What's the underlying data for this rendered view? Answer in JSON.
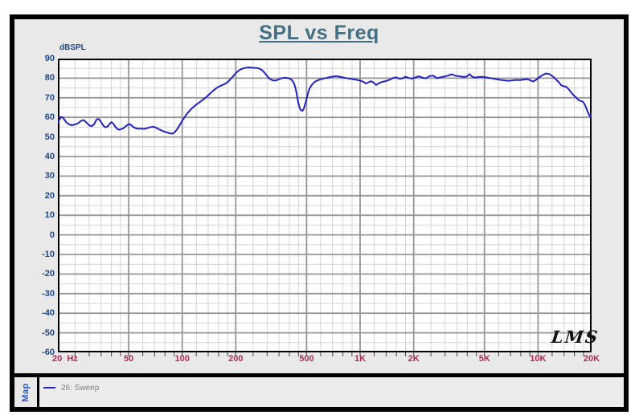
{
  "header": {
    "title": "SPL vs Freq"
  },
  "colors": {
    "title": "#456f82",
    "y_label": "#1f4787",
    "x_label": "#b02858",
    "curve": "#2121c8",
    "map_label": "#2553c9",
    "legend_text": "#7f7f7f",
    "panel_bg": "#e9e9e9",
    "plot_bg": "#ffffff",
    "grid_minor": "#d4d4d4",
    "grid_major": "#979797",
    "frame": "#000000"
  },
  "chart_data": {
    "type": "line",
    "title": "SPL vs Freq",
    "ylabel": "dBSPL",
    "watermark": "LMS",
    "x_axis": {
      "scale": "log",
      "min_hz": 20,
      "max_hz": 20000,
      "ticks": [
        {
          "hz": 20,
          "label": "20  Hz"
        },
        {
          "hz": 50,
          "label": "50"
        },
        {
          "hz": 100,
          "label": "100"
        },
        {
          "hz": 200,
          "label": "200"
        },
        {
          "hz": 500,
          "label": "500"
        },
        {
          "hz": 1000,
          "label": "1K"
        },
        {
          "hz": 2000,
          "label": "2K"
        },
        {
          "hz": 5000,
          "label": "5K"
        },
        {
          "hz": 10000,
          "label": "10K"
        },
        {
          "hz": 20000,
          "label": "20K"
        }
      ]
    },
    "y_axis": {
      "min_db": -60,
      "max_db": 90,
      "major_step": 10,
      "minor_step": 5,
      "unit": "dBSPL"
    },
    "grid": {
      "x_major_hz": [
        50,
        100,
        200,
        500,
        1000,
        2000,
        5000,
        10000
      ],
      "x_minor_hz": [
        25,
        30,
        35,
        40,
        45,
        60,
        70,
        80,
        90,
        120,
        140,
        160,
        180,
        250,
        300,
        350,
        400,
        450,
        600,
        700,
        800,
        900,
        1200,
        1400,
        1600,
        1800,
        2500,
        3000,
        3500,
        4000,
        4500,
        6000,
        7000,
        8000,
        9000,
        12000,
        14000,
        16000,
        18000
      ]
    },
    "series": [
      {
        "name": "26: Sweep",
        "color": "#2121c8",
        "points_hz_db": [
          [
            20,
            57.3
          ],
          [
            20.4,
            58.8
          ],
          [
            20.8,
            60.2
          ],
          [
            21.3,
            60.0
          ],
          [
            21.8,
            58.7
          ],
          [
            22.4,
            57.3
          ],
          [
            23.2,
            56.3
          ],
          [
            24,
            56.0
          ],
          [
            25,
            56.4
          ],
          [
            26,
            57.0
          ],
          [
            27,
            58.2
          ],
          [
            28,
            58.6
          ],
          [
            29,
            57.3
          ],
          [
            30,
            55.9
          ],
          [
            31,
            55.5
          ],
          [
            32,
            56.5
          ],
          [
            33,
            58.9
          ],
          [
            34,
            59.2
          ],
          [
            35,
            57.6
          ],
          [
            36,
            55.8
          ],
          [
            37,
            54.9
          ],
          [
            38,
            55.3
          ],
          [
            39,
            56.5
          ],
          [
            40,
            57.6
          ],
          [
            41,
            56.8
          ],
          [
            42,
            55.3
          ],
          [
            43,
            54.2
          ],
          [
            44,
            53.7
          ],
          [
            45,
            53.9
          ],
          [
            46.5,
            54.3
          ],
          [
            48,
            55.4
          ],
          [
            50,
            56.6
          ],
          [
            51.5,
            56.2
          ],
          [
            53,
            55.1
          ],
          [
            55,
            54.4
          ],
          [
            57,
            54.2
          ],
          [
            59,
            54.3
          ],
          [
            61,
            54.1
          ],
          [
            63,
            54.4
          ],
          [
            65,
            54.8
          ],
          [
            67,
            55.1
          ],
          [
            69,
            55.2
          ],
          [
            71,
            54.8
          ],
          [
            73,
            54.2
          ],
          [
            75,
            53.7
          ],
          [
            77,
            53.2
          ],
          [
            79,
            52.8
          ],
          [
            82,
            52.3
          ],
          [
            85,
            51.9
          ],
          [
            88,
            51.7
          ],
          [
            91,
            52.5
          ],
          [
            94,
            54.2
          ],
          [
            97,
            56.2
          ],
          [
            100,
            58.3
          ],
          [
            104,
            60.6
          ],
          [
            108,
            62.6
          ],
          [
            112,
            64.2
          ],
          [
            116,
            65.4
          ],
          [
            120,
            66.5
          ],
          [
            125,
            67.7
          ],
          [
            130,
            68.8
          ],
          [
            136,
            70.2
          ],
          [
            142,
            71.8
          ],
          [
            148,
            73.3
          ],
          [
            154,
            74.6
          ],
          [
            160,
            75.6
          ],
          [
            167,
            76.4
          ],
          [
            174,
            77.1
          ],
          [
            181,
            78.2
          ],
          [
            188,
            79.8
          ],
          [
            196,
            81.7
          ],
          [
            204,
            83.3
          ],
          [
            212,
            84.4
          ],
          [
            220,
            85.0
          ],
          [
            230,
            85.4
          ],
          [
            240,
            85.5
          ],
          [
            252,
            85.3
          ],
          [
            264,
            85.2
          ],
          [
            275,
            84.7
          ],
          [
            285,
            83.6
          ],
          [
            295,
            82.0
          ],
          [
            305,
            80.3
          ],
          [
            315,
            79.3
          ],
          [
            325,
            78.8
          ],
          [
            337,
            78.8
          ],
          [
            350,
            79.5
          ],
          [
            363,
            80.0
          ],
          [
            378,
            80.2
          ],
          [
            392,
            80.1
          ],
          [
            405,
            79.7
          ],
          [
            415,
            78.9
          ],
          [
            425,
            77.3
          ],
          [
            433,
            75.0
          ],
          [
            441,
            71.5
          ],
          [
            449,
            67.5
          ],
          [
            457,
            64.8
          ],
          [
            465,
            63.6
          ],
          [
            473,
            63.3
          ],
          [
            481,
            64.2
          ],
          [
            490,
            66.5
          ],
          [
            500,
            69.5
          ],
          [
            510,
            72.5
          ],
          [
            520,
            74.8
          ],
          [
            532,
            76.3
          ],
          [
            545,
            77.4
          ],
          [
            560,
            78.3
          ],
          [
            578,
            78.9
          ],
          [
            598,
            79.4
          ],
          [
            620,
            79.8
          ],
          [
            645,
            80.1
          ],
          [
            672,
            80.5
          ],
          [
            700,
            80.8
          ],
          [
            730,
            81.0
          ],
          [
            762,
            80.8
          ],
          [
            795,
            80.4
          ],
          [
            830,
            80.1
          ],
          [
            868,
            79.8
          ],
          [
            908,
            79.5
          ],
          [
            950,
            79.2
          ],
          [
            1000,
            78.8
          ],
          [
            1040,
            78.2
          ],
          [
            1080,
            77.3
          ],
          [
            1115,
            77.9
          ],
          [
            1150,
            78.5
          ],
          [
            1190,
            77.8
          ],
          [
            1230,
            76.5
          ],
          [
            1275,
            77.4
          ],
          [
            1330,
            78.1
          ],
          [
            1390,
            78.5
          ],
          [
            1455,
            79.1
          ],
          [
            1525,
            80.0
          ],
          [
            1600,
            80.4
          ],
          [
            1660,
            79.7
          ],
          [
            1730,
            79.9
          ],
          [
            1800,
            80.7
          ],
          [
            1880,
            80.1
          ],
          [
            1960,
            79.8
          ],
          [
            2050,
            80.4
          ],
          [
            2140,
            81.0
          ],
          [
            2240,
            80.2
          ],
          [
            2350,
            79.9
          ],
          [
            2460,
            81.1
          ],
          [
            2580,
            81.3
          ],
          [
            2700,
            80.0
          ],
          [
            2830,
            80.4
          ],
          [
            2970,
            80.8
          ],
          [
            3120,
            81.3
          ],
          [
            3280,
            82.0
          ],
          [
            3450,
            81.2
          ],
          [
            3620,
            81.0
          ],
          [
            3800,
            80.6
          ],
          [
            3990,
            80.9
          ],
          [
            4120,
            82.1
          ],
          [
            4260,
            80.8
          ],
          [
            4430,
            80.3
          ],
          [
            4650,
            80.6
          ],
          [
            4880,
            80.7
          ],
          [
            5100,
            80.4
          ],
          [
            5350,
            80.1
          ],
          [
            5600,
            79.8
          ],
          [
            5900,
            79.4
          ],
          [
            6200,
            79.1
          ],
          [
            6500,
            78.9
          ],
          [
            6800,
            78.7
          ],
          [
            7150,
            78.9
          ],
          [
            7500,
            79.1
          ],
          [
            7900,
            79.0
          ],
          [
            8300,
            79.3
          ],
          [
            8700,
            79.5
          ],
          [
            9100,
            78.8
          ],
          [
            9400,
            78.3
          ],
          [
            9700,
            79.0
          ],
          [
            10100,
            80.3
          ],
          [
            10600,
            81.6
          ],
          [
            11100,
            82.4
          ],
          [
            11600,
            82.1
          ],
          [
            12100,
            80.9
          ],
          [
            12600,
            79.4
          ],
          [
            13100,
            77.9
          ],
          [
            13500,
            76.4
          ],
          [
            13900,
            75.9
          ],
          [
            14400,
            75.6
          ],
          [
            14900,
            74.3
          ],
          [
            15400,
            72.6
          ],
          [
            15900,
            71.2
          ],
          [
            16400,
            70.1
          ],
          [
            16900,
            68.8
          ],
          [
            17400,
            68.3
          ],
          [
            17900,
            68.0
          ],
          [
            18300,
            66.6
          ],
          [
            18700,
            64.6
          ],
          [
            19100,
            62.4
          ],
          [
            19500,
            60.7
          ],
          [
            19800,
            60.3
          ],
          [
            20000,
            62.0
          ]
        ]
      }
    ]
  },
  "map_panel": {
    "label": "Map",
    "legend": [
      {
        "label": "26: Sweep",
        "color": "#2121c8"
      }
    ]
  }
}
